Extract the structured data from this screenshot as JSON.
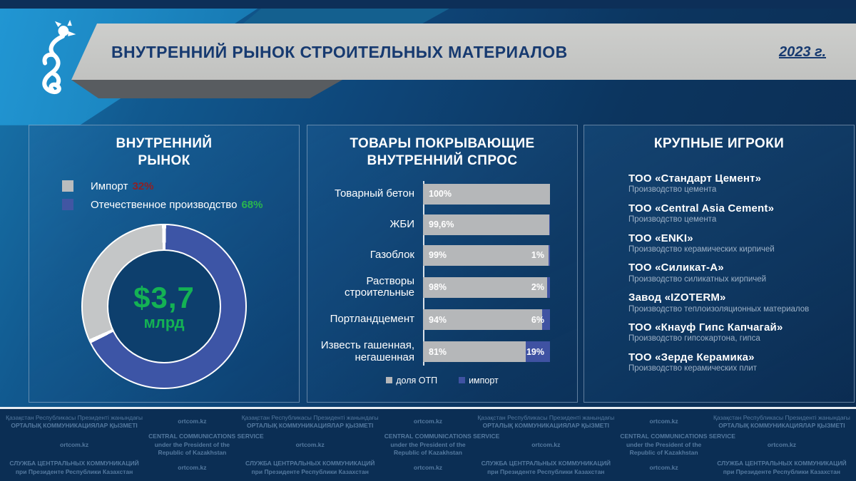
{
  "header": {
    "title": "ВНУТРЕННИЙ РЫНОК СТРОИТЕЛЬНЫХ МАТЕРИАЛОВ",
    "year": "2023 г.",
    "logo": "snow-leopard-emblem"
  },
  "market": {
    "title1": "ВНУТРЕННИЙ",
    "title2": "РЫНОК",
    "legend": [
      {
        "label": "Импорт",
        "value": "32%",
        "swatch_color": "#b9bcbe",
        "value_color": "#8f2024"
      },
      {
        "label": "Отечественное производство",
        "value": "68%",
        "swatch_color": "#4156a3",
        "value_color": "#2ab54e"
      }
    ],
    "donut_value": "$3,7",
    "donut_unit": "млрд"
  },
  "demand": {
    "title1": "ТОВАРЫ ПОКРЫВАЮЩИЕ",
    "title2": "ВНУТРЕННИЙ СПРОС",
    "legend": [
      {
        "label": "доля ОТП",
        "color": "#b5b7b9"
      },
      {
        "label": "импорт",
        "color": "#3f52a2"
      }
    ]
  },
  "players": {
    "title": "КРУПНЫЕ ИГРОКИ",
    "companies": [
      {
        "name": "ТОО «Стандарт  Цемент»",
        "desc": "Производство цемента"
      },
      {
        "name": "ТОО «Central  Asia Cement»",
        "desc": "Производство цемента"
      },
      {
        "name": "ТОО «ENKI»",
        "desc": "Производство керамических кирпичей"
      },
      {
        "name": "ТОО «Силикат-А»",
        "desc": "Производство силикатных кирпичей"
      },
      {
        "name": "Завод «IZOTERM»",
        "desc": "Производство теплоизоляционных материалов"
      },
      {
        "name": "ТОО «Кнауф  Гипс  Капчагай»",
        "desc": "Производство гипсокартона, гипса"
      },
      {
        "name": "ТОО «Зерде  Керамика»",
        "desc": "Производство керамических плит"
      }
    ]
  },
  "footer": {
    "url": "ortcom.kz",
    "kz": [
      "Қазақстан Республикасы Президенті жанындағы",
      "ОРТАЛЫҚ КОММУНИКАЦИЯЛАР ҚЫЗМЕТІ"
    ],
    "en": [
      "CENTRAL COMMUNICATIONS SERVICE",
      "under the President of the",
      "Republic of Kazakhstan"
    ],
    "ru": [
      "СЛУЖБА ЦЕНТРАЛЬНЫХ КОММУНИКАЦИЙ",
      "при Президенте Республики Казахстан"
    ]
  },
  "colors": {
    "accent_green": "#2ab54e",
    "accent_red": "#8f2024",
    "bar_gray": "#b5b7b9",
    "bar_blue": "#3f52a2",
    "donut_blue": "#3d55a6",
    "donut_gray": "#c4c6c7",
    "banner_gray": "#c9cac8",
    "navy_text": "#173a70",
    "footer_text": "#54799f"
  },
  "chart_data": [
    {
      "type": "pie",
      "subtype": "donut",
      "title": "ВНУТРЕННИЙ РЫНОК",
      "center_label": "$3,7 млрд",
      "slices": [
        {
          "label": "Отечественное производство",
          "value": 68,
          "color": "#3d55a6"
        },
        {
          "label": "Импорт",
          "value": 32,
          "color": "#c4c6c7"
        }
      ],
      "start_angle_deg": 0,
      "direction": "clockwise"
    },
    {
      "type": "bar",
      "orientation": "horizontal-stacked",
      "title": "ТОВАРЫ ПОКРЫВАЮЩИЕ ВНУТРЕННИЙ СПРОС",
      "categories": [
        "Товарный бетон",
        "ЖБИ",
        "Газоблок",
        "Растворы строительные",
        "Портландцемент",
        "Известь гашенная, негашенная"
      ],
      "series": [
        {
          "name": "доля ОТП",
          "color": "#b5b7b9",
          "values": [
            100,
            99.6,
            99,
            98,
            94,
            81
          ],
          "labels": [
            "100%",
            "99,6%",
            "99%",
            "98%",
            "94%",
            "81%"
          ]
        },
        {
          "name": "импорт",
          "color": "#3f52a2",
          "values": [
            0,
            0.4,
            1,
            2,
            6,
            19
          ],
          "labels": [
            "",
            "",
            "1%",
            "2%",
            "6%",
            "19%"
          ]
        }
      ],
      "xlim": [
        0,
        100
      ],
      "legend_position": "bottom",
      "grid": false
    }
  ]
}
